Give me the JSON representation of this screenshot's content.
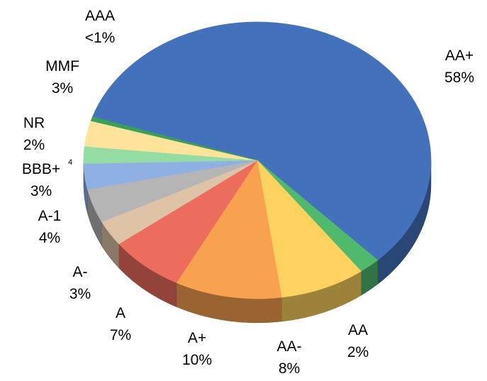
{
  "chart_data": {
    "type": "pie",
    "title": "",
    "style": "3d-tilted",
    "slices": [
      {
        "label": "AA+",
        "value_text": "58%",
        "value": 58,
        "color": "#4471bb"
      },
      {
        "label": "AA",
        "value_text": "2%",
        "value": 2,
        "color": "#4fba6e"
      },
      {
        "label": "AA-",
        "value_text": "8%",
        "value": 8,
        "color": "#fdd25e"
      },
      {
        "label": "A+",
        "value_text": "10%",
        "value": 10,
        "color": "#f8a24f"
      },
      {
        "label": "A",
        "value_text": "7%",
        "value": 7,
        "color": "#ec6c5e"
      },
      {
        "label": "A-",
        "value_text": "3%",
        "value": 3,
        "color": "#dfc3a6"
      },
      {
        "label": "A-1",
        "value_text": "4%",
        "value": 4,
        "color": "#b5b5b5"
      },
      {
        "label": "BBB+",
        "value_text": "3%",
        "value": 3,
        "color": "#8fb0e2",
        "note": "4"
      },
      {
        "label": "NR",
        "value_text": "2%",
        "value": 2,
        "color": "#94dca4"
      },
      {
        "label": "MMF",
        "value_text": "3%",
        "value": 3,
        "color": "#fde49a"
      },
      {
        "label": "AAA",
        "value_text": "<1%",
        "value": 0.5,
        "color": "#3a9f5a"
      }
    ]
  }
}
